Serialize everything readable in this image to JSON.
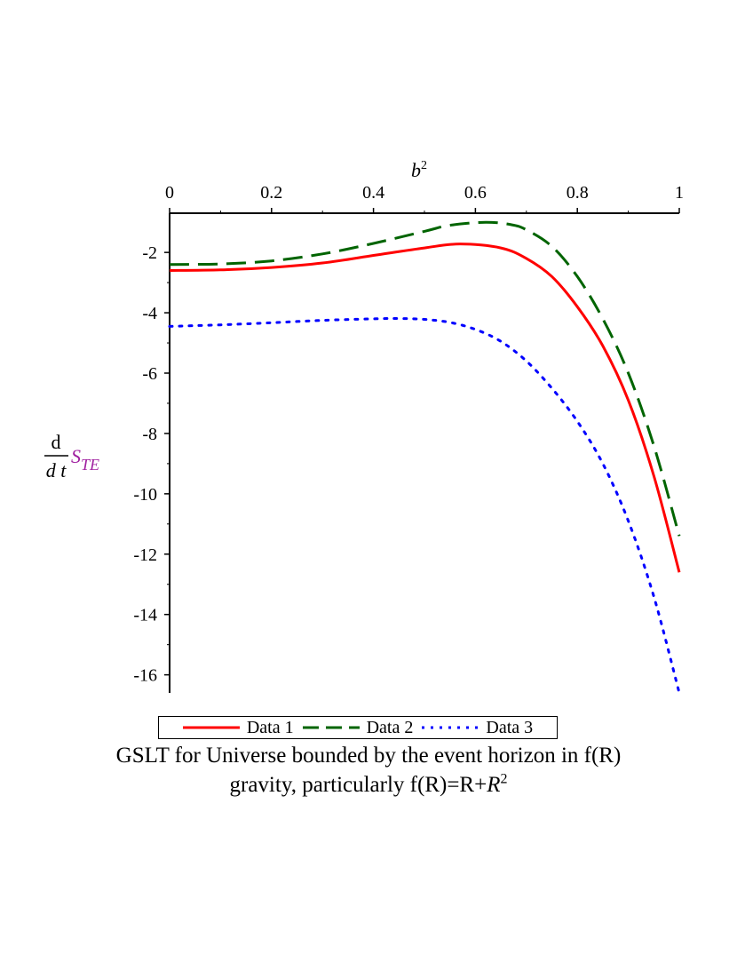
{
  "chart_data": {
    "type": "line",
    "xlabel": "b",
    "xlabel_sup": "2",
    "ylabel": {
      "d_top": "d",
      "d_bottom": "d t",
      "symbol": "S",
      "subscript": "TE"
    },
    "xlim": [
      0,
      1
    ],
    "ylim": [
      -16.6,
      -0.7
    ],
    "x_ticks": [
      0,
      0.2,
      0.4,
      0.6,
      0.8,
      1
    ],
    "x_tick_labels": [
      "0",
      "0.2",
      "0.4",
      "0.6",
      "0.8",
      "1"
    ],
    "y_ticks": [
      -2,
      -4,
      -6,
      -8,
      -10,
      -12,
      -14,
      -16
    ],
    "y_tick_labels": [
      "-2",
      "-4",
      "-6",
      "-8",
      "-10",
      "-12",
      "-14",
      "-16"
    ],
    "grid": false,
    "legend_position": "bottom",
    "series": [
      {
        "name": "Data 1",
        "color": "#ff0000",
        "dash": "solid",
        "x": [
          0,
          0.1,
          0.2,
          0.3,
          0.4,
          0.5,
          0.57,
          0.65,
          0.7,
          0.75,
          0.8,
          0.85,
          0.9,
          0.95,
          1.0
        ],
        "y": [
          -2.6,
          -2.58,
          -2.5,
          -2.35,
          -2.1,
          -1.85,
          -1.72,
          -1.85,
          -2.2,
          -2.8,
          -3.8,
          -5.1,
          -6.9,
          -9.4,
          -12.6
        ]
      },
      {
        "name": "Data 2",
        "color": "#006400",
        "dash": "long-dash",
        "x": [
          0,
          0.1,
          0.2,
          0.3,
          0.4,
          0.5,
          0.55,
          0.62,
          0.67,
          0.7,
          0.75,
          0.8,
          0.85,
          0.9,
          0.95,
          1.0
        ],
        "y": [
          -2.4,
          -2.38,
          -2.28,
          -2.05,
          -1.7,
          -1.3,
          -1.1,
          -1.0,
          -1.08,
          -1.25,
          -1.8,
          -2.8,
          -4.2,
          -6.0,
          -8.4,
          -11.4
        ]
      },
      {
        "name": "Data 3",
        "color": "#0000ff",
        "dash": "dotted",
        "x": [
          0,
          0.1,
          0.2,
          0.3,
          0.4,
          0.45,
          0.5,
          0.55,
          0.6,
          0.65,
          0.7,
          0.75,
          0.8,
          0.85,
          0.9,
          0.95,
          1.0
        ],
        "y": [
          -4.45,
          -4.4,
          -4.33,
          -4.25,
          -4.2,
          -4.19,
          -4.22,
          -4.32,
          -4.55,
          -4.95,
          -5.6,
          -6.5,
          -7.6,
          -9.0,
          -10.9,
          -13.4,
          -16.6
        ]
      }
    ]
  },
  "legend": {
    "items": [
      "Data 1",
      "Data 2",
      "Data 3"
    ]
  },
  "caption": {
    "line1": "GSLT for Universe bounded by the event horizon in f(R)",
    "line2_prefix": "gravity, particularly f(R)=R+",
    "line2_var": "R",
    "line2_sup": "2"
  }
}
